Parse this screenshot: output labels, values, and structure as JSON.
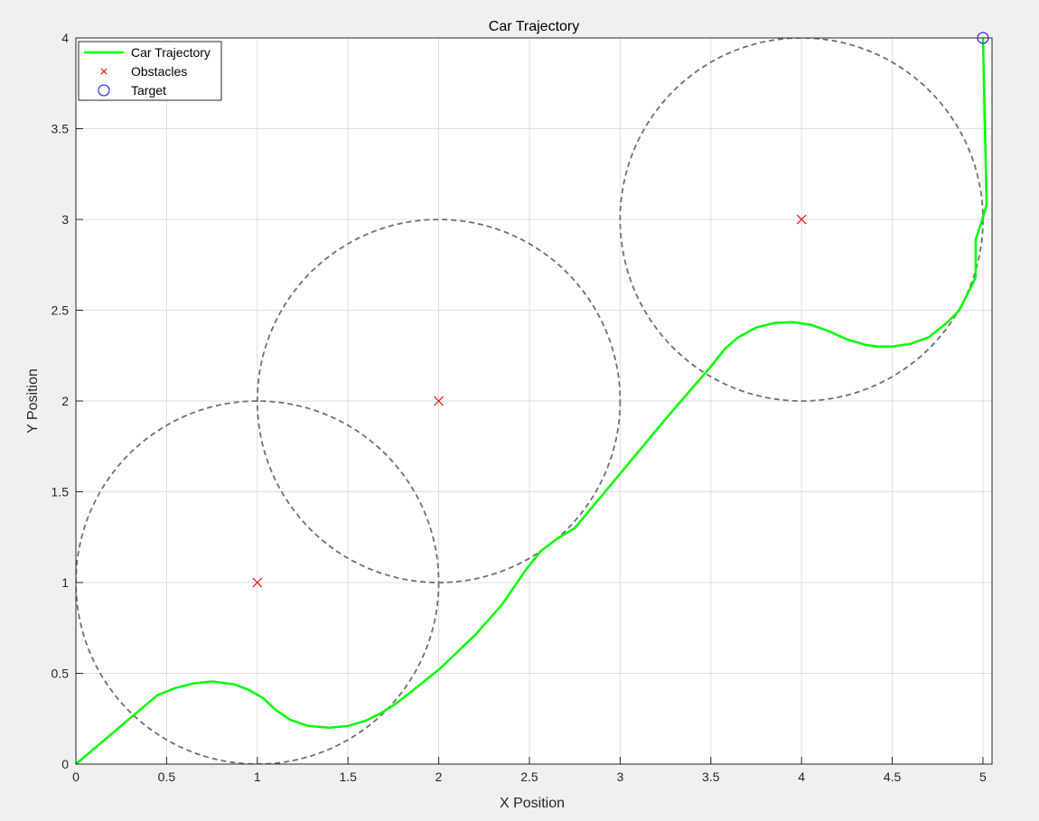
{
  "chart_data": {
    "type": "line",
    "title": "Car Trajectory",
    "xlabel": "X Position",
    "ylabel": "Y Position",
    "xlim": [
      0,
      5.05
    ],
    "ylim": [
      0,
      4
    ],
    "xticks": [
      0,
      0.5,
      1,
      1.5,
      2,
      2.5,
      3,
      3.5,
      4,
      4.5,
      5
    ],
    "xtick_labels": [
      "0",
      "0.5",
      "1",
      "1.5",
      "2",
      "2.5",
      "3",
      "3.5",
      "4",
      "4.5",
      "5"
    ],
    "yticks": [
      0,
      0.5,
      1,
      1.5,
      2,
      2.5,
      3,
      3.5,
      4
    ],
    "ytick_labels": [
      "0",
      "0.5",
      "1",
      "1.5",
      "2",
      "2.5",
      "3",
      "3.5",
      "4"
    ],
    "grid": true,
    "legend_position": "top-left",
    "series": [
      {
        "name": "Car Trajectory",
        "kind": "line",
        "color": "#00ff00",
        "x": [
          0,
          0.45,
          0.55,
          0.65,
          0.75,
          0.87,
          0.95,
          1.03,
          1.1,
          1.18,
          1.28,
          1.4,
          1.5,
          1.6,
          1.68,
          1.76,
          1.85,
          2.0,
          2.2,
          2.35,
          2.48,
          2.56,
          2.65,
          2.75,
          3.0,
          3.25,
          3.5,
          3.58,
          3.65,
          3.75,
          3.85,
          3.95,
          4.05,
          4.15,
          4.25,
          4.35,
          4.42,
          4.5,
          4.6,
          4.7,
          4.8,
          4.87,
          4.93,
          4.96,
          4.96,
          4.99,
          5.02,
          5.0
        ],
        "y": [
          0,
          0.38,
          0.42,
          0.445,
          0.455,
          0.44,
          0.41,
          0.365,
          0.3,
          0.245,
          0.21,
          0.2,
          0.21,
          0.24,
          0.28,
          0.33,
          0.4,
          0.52,
          0.71,
          0.88,
          1.07,
          1.17,
          1.24,
          1.3,
          1.6,
          1.9,
          2.19,
          2.29,
          2.35,
          2.405,
          2.43,
          2.435,
          2.42,
          2.385,
          2.34,
          2.31,
          2.3,
          2.3,
          2.315,
          2.35,
          2.43,
          2.5,
          2.62,
          2.68,
          2.89,
          2.98,
          3.08,
          4.0
        ]
      },
      {
        "name": "Obstacles",
        "kind": "marker-x",
        "color": "#ff0000",
        "x": [
          1,
          2,
          4
        ],
        "y": [
          1,
          2,
          3
        ]
      },
      {
        "name": "Target",
        "kind": "marker-circle",
        "color": "#0000ff",
        "x": [
          5
        ],
        "y": [
          4
        ]
      }
    ],
    "obstacle_circles": [
      {
        "cx": 1,
        "cy": 1,
        "r": 1
      },
      {
        "cx": 2,
        "cy": 2,
        "r": 1
      },
      {
        "cx": 4,
        "cy": 3,
        "r": 1
      }
    ],
    "circle_color": "#707070"
  }
}
